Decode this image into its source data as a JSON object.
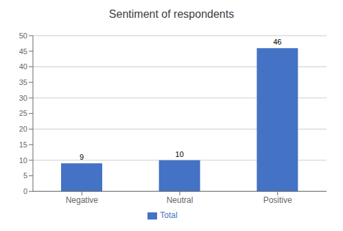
{
  "chart_data": {
    "type": "bar",
    "title": "Sentiment of respondents",
    "categories": [
      "Negative",
      "Neutral",
      "Positive"
    ],
    "series": [
      {
        "name": "Total",
        "color": "#4472C4",
        "values": [
          9,
          10,
          46
        ]
      }
    ],
    "ylim": [
      0,
      50
    ],
    "yticks": [
      0,
      5,
      10,
      15,
      20,
      25,
      30,
      35,
      40,
      45,
      50
    ],
    "grid": true,
    "legend": "bottom",
    "data_labels": true
  }
}
